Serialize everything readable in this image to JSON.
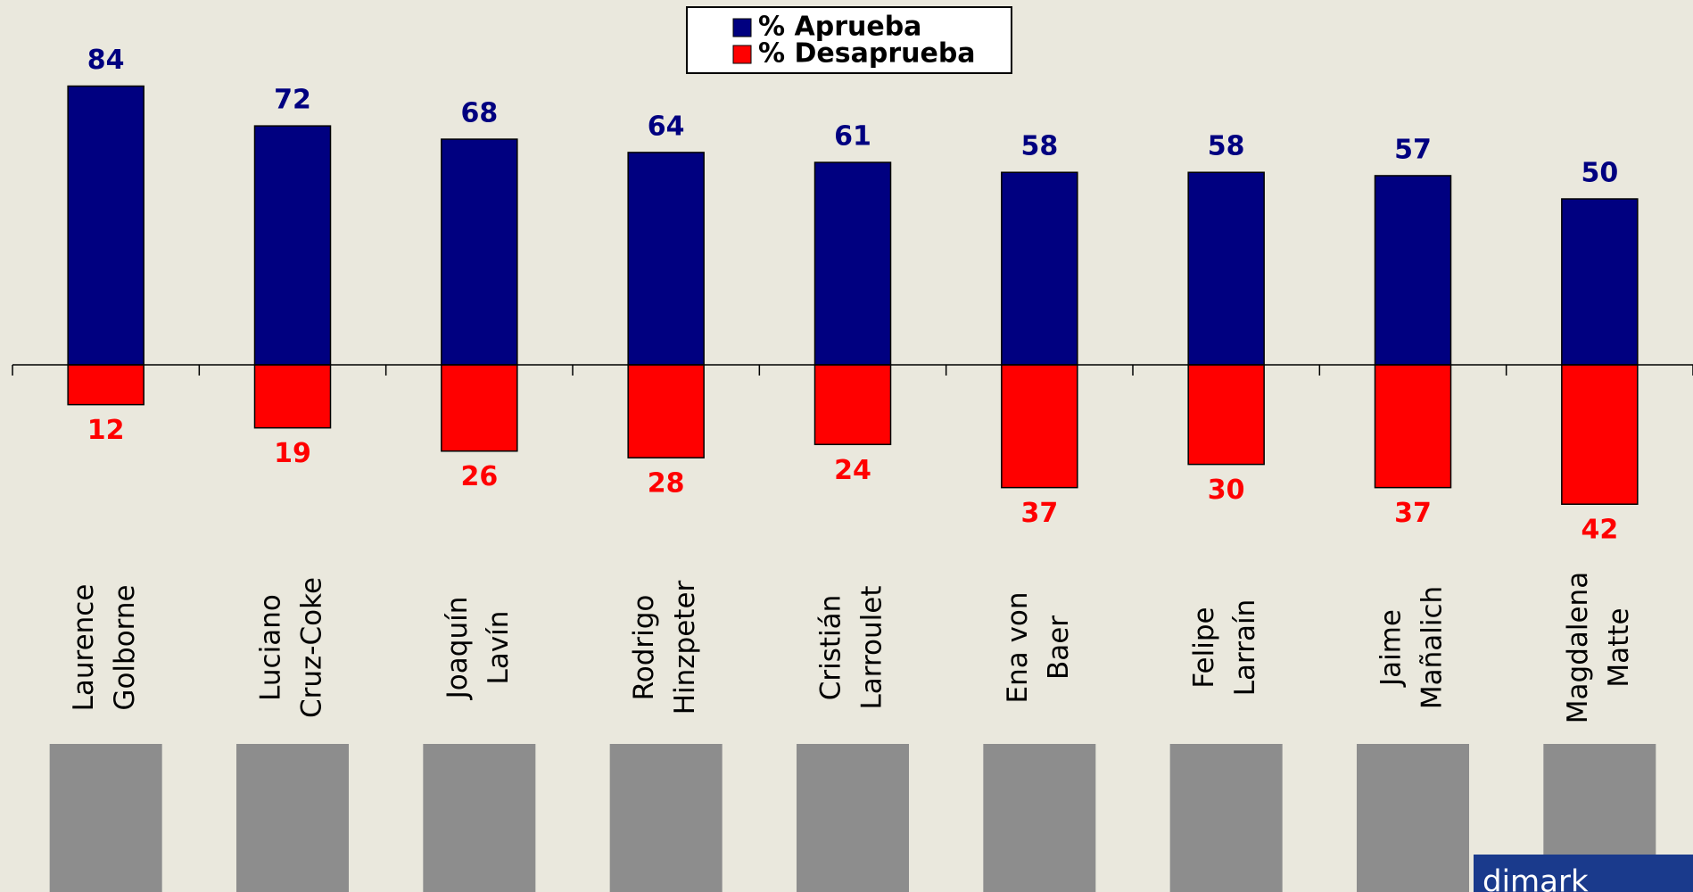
{
  "chart_data": {
    "type": "diverging-bar",
    "categories": [
      [
        "Laurence",
        "Golborne"
      ],
      [
        "Luciano",
        "Cruz-Coke"
      ],
      [
        "Joaquín",
        "Lavín"
      ],
      [
        "Rodrigo",
        "Hinzpeter"
      ],
      [
        "Cristián",
        "Larroulet"
      ],
      [
        "Ena von",
        "Baer"
      ],
      [
        "Felipe",
        "Larraín"
      ],
      [
        "Jaime",
        "Mañalich"
      ],
      [
        "Magdalena",
        "Matte"
      ]
    ],
    "series": [
      {
        "name": "% Aprueba",
        "color": "#000080",
        "values": [
          84,
          72,
          68,
          64,
          61,
          58,
          58,
          57,
          50
        ]
      },
      {
        "name": "% Desaprueba",
        "color": "#ff0000",
        "values": [
          12,
          19,
          26,
          28,
          24,
          37,
          30,
          37,
          42
        ]
      }
    ],
    "logo": "dimark"
  }
}
